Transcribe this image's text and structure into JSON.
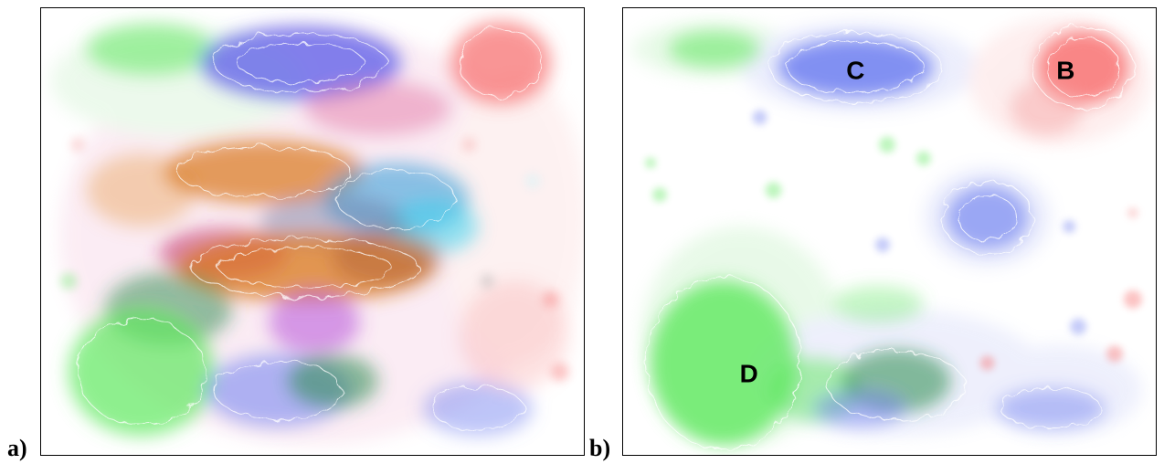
{
  "figure": {
    "panel_a": {
      "label": "a)"
    },
    "panel_b": {
      "label": "b)",
      "cluster_labels": {
        "c": "C",
        "b": "B",
        "d": "D"
      }
    }
  },
  "colors": {
    "green": "#5ee85e",
    "blue": "#6f7ff0",
    "red": "#f76a6a",
    "orange": "#d9781e",
    "magenta": "#b044d8",
    "cyan": "#3ed2ee",
    "dark_green": "#2a8a4a"
  }
}
